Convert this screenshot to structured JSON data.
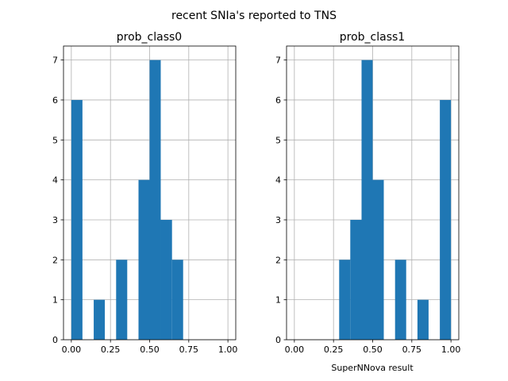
{
  "figure": {
    "title": "recent SNIa's reported to TNS"
  },
  "chart_data": [
    {
      "type": "bar",
      "title": "prob_class0",
      "xlabel": "",
      "ylabel": "",
      "xlim": [
        -0.05,
        1.05
      ],
      "ylim": [
        0,
        7.35
      ],
      "grid": true,
      "xticks": [
        "0.00",
        "0.25",
        "0.50",
        "0.75",
        "1.00"
      ],
      "yticks": [
        "0",
        "1",
        "2",
        "3",
        "4",
        "5",
        "6",
        "7"
      ],
      "color": "#1f77b4",
      "bins": [
        {
          "x0": 0.0,
          "x1": 0.071,
          "count": 6
        },
        {
          "x0": 0.143,
          "x1": 0.214,
          "count": 1
        },
        {
          "x0": 0.286,
          "x1": 0.357,
          "count": 2
        },
        {
          "x0": 0.429,
          "x1": 0.5,
          "count": 4
        },
        {
          "x0": 0.5,
          "x1": 0.571,
          "count": 7
        },
        {
          "x0": 0.571,
          "x1": 0.643,
          "count": 3
        },
        {
          "x0": 0.643,
          "x1": 0.714,
          "count": 2
        }
      ]
    },
    {
      "type": "bar",
      "title": "prob_class1",
      "xlabel": "SuperNNova result",
      "ylabel": "",
      "xlim": [
        -0.05,
        1.05
      ],
      "ylim": [
        0,
        7.35
      ],
      "grid": true,
      "xticks": [
        "0.00",
        "0.25",
        "0.50",
        "0.75",
        "1.00"
      ],
      "yticks": [
        "0",
        "1",
        "2",
        "3",
        "4",
        "5",
        "6",
        "7"
      ],
      "color": "#1f77b4",
      "bins": [
        {
          "x0": 0.286,
          "x1": 0.357,
          "count": 2
        },
        {
          "x0": 0.357,
          "x1": 0.429,
          "count": 3
        },
        {
          "x0": 0.429,
          "x1": 0.5,
          "count": 7
        },
        {
          "x0": 0.5,
          "x1": 0.571,
          "count": 4
        },
        {
          "x0": 0.643,
          "x1": 0.714,
          "count": 2
        },
        {
          "x0": 0.786,
          "x1": 0.857,
          "count": 1
        },
        {
          "x0": 0.929,
          "x1": 1.0,
          "count": 6
        }
      ]
    }
  ]
}
